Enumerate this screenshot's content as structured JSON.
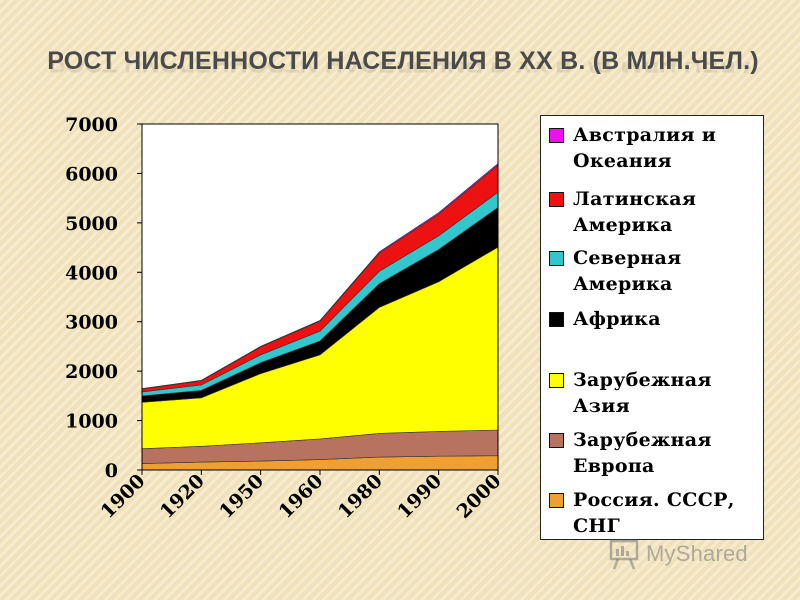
{
  "slide": {
    "title": "РОСТ ЧИСЛЕННОСТИ НАСЕЛЕНИЯ В XX В. (В МЛН.ЧЕЛ.)"
  },
  "watermark": {
    "text": "MyShared"
  },
  "chart_data": {
    "type": "area",
    "stacked": true,
    "title": "",
    "xlabel": "",
    "ylabel": "",
    "categories": [
      "1900",
      "1920",
      "1950",
      "1960",
      "1980",
      "1990",
      "2000"
    ],
    "ylim": [
      0,
      7000
    ],
    "yticks": [
      0,
      1000,
      2000,
      3000,
      4000,
      5000,
      6000,
      7000
    ],
    "grid": false,
    "legend_position": "right",
    "series": [
      {
        "name": "Россия. СССР, СНГ",
        "color": "#f0a030",
        "values": [
          130,
          160,
          180,
          210,
          260,
          280,
          290
        ]
      },
      {
        "name": "Зарубежная Европа",
        "color": "#b87260",
        "values": [
          300,
          320,
          370,
          420,
          480,
          500,
          520
        ]
      },
      {
        "name": "Зарубежная Азия",
        "color": "#ffff00",
        "values": [
          940,
          980,
          1400,
          1700,
          2550,
          3030,
          3700
        ]
      },
      {
        "name": "Африка",
        "color": "#000000",
        "values": [
          130,
          150,
          220,
          280,
          480,
          650,
          800
        ]
      },
      {
        "name": "Северная Америка",
        "color": "#33c6cc",
        "values": [
          80,
          110,
          160,
          200,
          250,
          280,
          310
        ]
      },
      {
        "name": "Латинская Америка",
        "color": "#ee1111",
        "values": [
          60,
          85,
          160,
          200,
          370,
          440,
          550
        ]
      },
      {
        "name": "Австралия и Океания",
        "color": "#ee11ee",
        "values": [
          6,
          9,
          13,
          16,
          23,
          27,
          31
        ]
      }
    ],
    "legend": [
      {
        "label": "Австралия и Океания",
        "color": "#ee11ee"
      },
      {
        "label": "Латинская Америка",
        "color": "#ee1111"
      },
      {
        "label": "Северная Америка",
        "color": "#33c6cc"
      },
      {
        "label": "Африка",
        "color": "#000000"
      },
      {
        "label": "Зарубежная Азия",
        "color": "#ffff00"
      },
      {
        "label": "Зарубежная Европа",
        "color": "#b87260"
      },
      {
        "label": "Россия. СССР, СНГ",
        "color": "#f0a030"
      }
    ]
  }
}
